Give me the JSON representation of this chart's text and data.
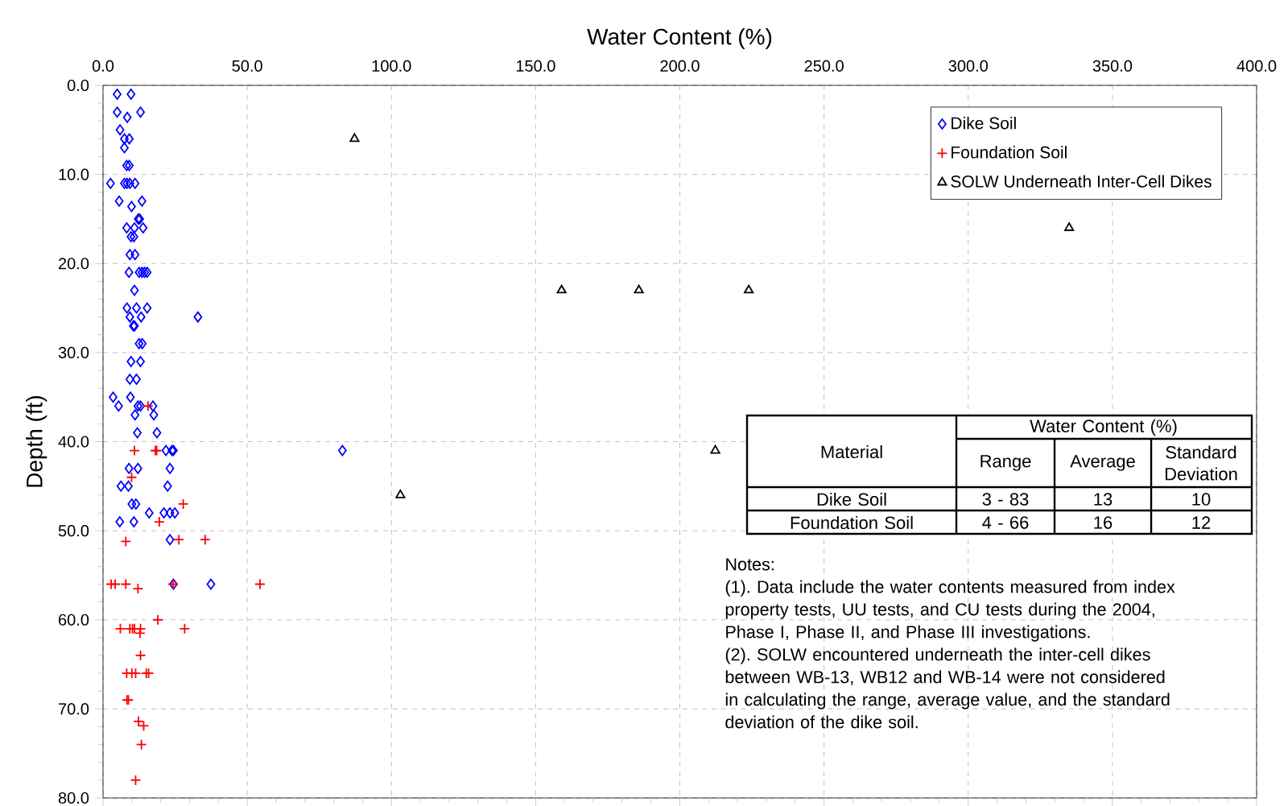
{
  "chart_data": {
    "type": "scatter",
    "xlabel": "Water Content (%)",
    "ylabel": "Depth (ft)",
    "xlim": [
      0,
      400
    ],
    "ylim": [
      80,
      0
    ],
    "xticks": [
      {
        "value": 0,
        "label": "0.0"
      },
      {
        "value": 50,
        "label": "50.0"
      },
      {
        "value": 100,
        "label": "100.0"
      },
      {
        "value": 150,
        "label": "150.0"
      },
      {
        "value": 200,
        "label": "200.0"
      },
      {
        "value": 250,
        "label": "250.0"
      },
      {
        "value": 300,
        "label": "300.0"
      },
      {
        "value": 350,
        "label": "350.0"
      },
      {
        "value": 400,
        "label": "400.0"
      }
    ],
    "yticks": [
      {
        "value": 0,
        "label": "0.0"
      },
      {
        "value": 10,
        "label": "10.0"
      },
      {
        "value": 20,
        "label": "20.0"
      },
      {
        "value": 30,
        "label": "30.0"
      },
      {
        "value": 40,
        "label": "40.0"
      },
      {
        "value": 50,
        "label": "50.0"
      },
      {
        "value": 60,
        "label": "60.0"
      },
      {
        "value": 70,
        "label": "70.0"
      },
      {
        "value": 80,
        "label": "80.0"
      }
    ],
    "grid": true,
    "legend": "top right",
    "series": [
      {
        "name": "Dike Soil",
        "color": "#0000ff",
        "marker": "diamond",
        "x": [
          4.9,
          9.7,
          4.9,
          13,
          8.4,
          5.9,
          7.4,
          9.1,
          7.4,
          8.2,
          9.1,
          2.6,
          7.4,
          8.3,
          9.3,
          11.1,
          5.6,
          13.5,
          9.9,
          12.2,
          12.7,
          8.2,
          10.9,
          13.9,
          9.7,
          10.7,
          9.3,
          11.1,
          9,
          12.5,
          13.5,
          14.4,
          15.3,
          10.9,
          8.3,
          11.6,
          15.3,
          9.3,
          13.2,
          32.9,
          10.5,
          10.9,
          12.5,
          13.6,
          9.7,
          13,
          9.3,
          11.6,
          3.5,
          9.5,
          5.4,
          12.1,
          13,
          17.3,
          11.1,
          17.6,
          11.9,
          18.7,
          21.8,
          23.9,
          24.4,
          83,
          9,
          12.1,
          23.2,
          6.2,
          8.8,
          22.4,
          10,
          11.4,
          16,
          21.1,
          23.2,
          24.9,
          5.8,
          10.7,
          23.2,
          24.4,
          37.4
        ],
        "values": [
          1,
          1,
          3,
          3,
          3.6,
          5,
          6,
          6,
          7,
          9,
          9,
          11,
          11,
          11,
          11,
          11,
          13,
          13,
          13.6,
          15,
          15,
          16,
          16,
          16,
          17,
          17,
          19,
          19,
          21,
          21,
          21,
          21,
          21,
          23,
          25,
          25,
          25,
          26,
          26,
          26,
          27,
          27,
          29,
          29,
          31,
          31,
          33,
          33,
          35,
          35,
          36,
          36,
          36,
          36,
          37,
          37,
          39,
          39,
          41,
          41,
          41,
          41,
          43,
          43,
          43,
          45,
          45,
          45,
          47,
          47,
          48,
          48,
          48,
          48,
          49,
          49,
          51,
          56,
          56
        ]
      },
      {
        "name": "Foundation Soil",
        "color": "#ff0000",
        "marker": "cross",
        "x": [
          15.6,
          10.9,
          18.1,
          18.6,
          9.9,
          27.8,
          19.5,
          26.3,
          35.4,
          7.9,
          2.8,
          4.2,
          7.9,
          24.3,
          54.4,
          12.1,
          19,
          6,
          9.3,
          10.2,
          10.9,
          13,
          28.3,
          12.8,
          13,
          8.2,
          10,
          11.3,
          15,
          15.8,
          8.3,
          8.8,
          12.3,
          14.1,
          13.3,
          11.3
        ],
        "values": [
          36,
          41,
          41,
          41,
          44,
          47,
          49,
          51,
          51,
          51.2,
          56,
          56,
          56,
          56,
          56,
          56.5,
          60,
          61,
          61,
          61,
          61,
          61,
          61,
          61.5,
          64,
          66,
          66,
          66,
          66,
          66,
          69,
          69,
          71.4,
          71.9,
          74,
          78
        ]
      },
      {
        "name": "SOLW Underneath Inter-Cell Dikes",
        "color": "#000000",
        "marker": "triangle",
        "x": [
          87.2,
          335,
          159,
          185.8,
          223.9,
          212.3,
          103.1
        ],
        "values": [
          6,
          16,
          23,
          23,
          23,
          41,
          46
        ]
      }
    ],
    "annotations": [
      "Material",
      "Water Content (%)",
      "Range",
      "Average",
      "Standard Deviation",
      "Dike Soil",
      "3 - 83",
      "13",
      "10",
      "Foundation Soil",
      "4 - 66",
      "16",
      "12",
      "Notes:",
      "(1). Data include the water contents measured from index property tests, UU tests, and CU tests during the 2004, Phase I, Phase II, and Phase III investigations.",
      "(2). SOLW encountered underneath the inter-cell dikes between WB-13, WB12 and WB-14 were not considered in calculating the range, average value, and the standard deviation of  the dike soil."
    ]
  }
}
